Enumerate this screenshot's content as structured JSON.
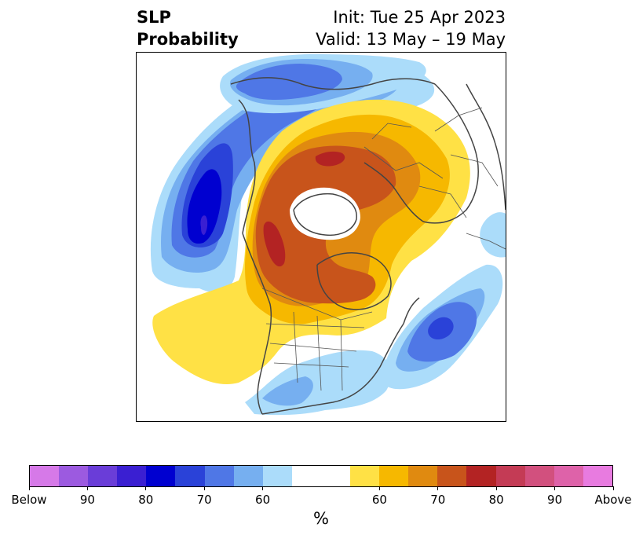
{
  "title": {
    "left_line1": "SLP",
    "left_line2": "Probability",
    "right_line1": "Init: Tue 25 Apr 2023",
    "right_line2": "Valid: 13 May – 19 May"
  },
  "map": {
    "projection": "north-polar-stereographic",
    "field": "sea-level-pressure tercile probability",
    "features": [
      {
        "name": "gulf-of-alaska-below-anomaly",
        "category": "below",
        "peak_percent": 90
      },
      {
        "name": "north-atlantic-below-anomaly",
        "category": "below",
        "peak_percent": 80
      },
      {
        "name": "siberia-scandinavia-below-anomaly",
        "category": "below",
        "peak_percent": 70
      },
      {
        "name": "southern-usa-below-anomaly",
        "category": "below",
        "peak_percent": 60
      },
      {
        "name": "arctic-above-anomaly",
        "category": "above",
        "peak_percent": 80
      }
    ]
  },
  "colorbar": {
    "unit": "%",
    "colors": [
      "#d679e8",
      "#9c5ae0",
      "#6a3dd8",
      "#3a1fd2",
      "#0000d0",
      "#2a42d8",
      "#4f77e6",
      "#76aff0",
      "#abdcfa",
      "#ffffff",
      "#ffe145",
      "#f6b800",
      "#e08a10",
      "#c8541b",
      "#b32323",
      "#c43b55",
      "#d2507e",
      "#de62a9",
      "#e87be0"
    ],
    "wide_index": 9,
    "tick_labels": [
      "Below",
      "90",
      "80",
      "70",
      "60",
      "60",
      "70",
      "80",
      "90",
      "Above"
    ]
  }
}
